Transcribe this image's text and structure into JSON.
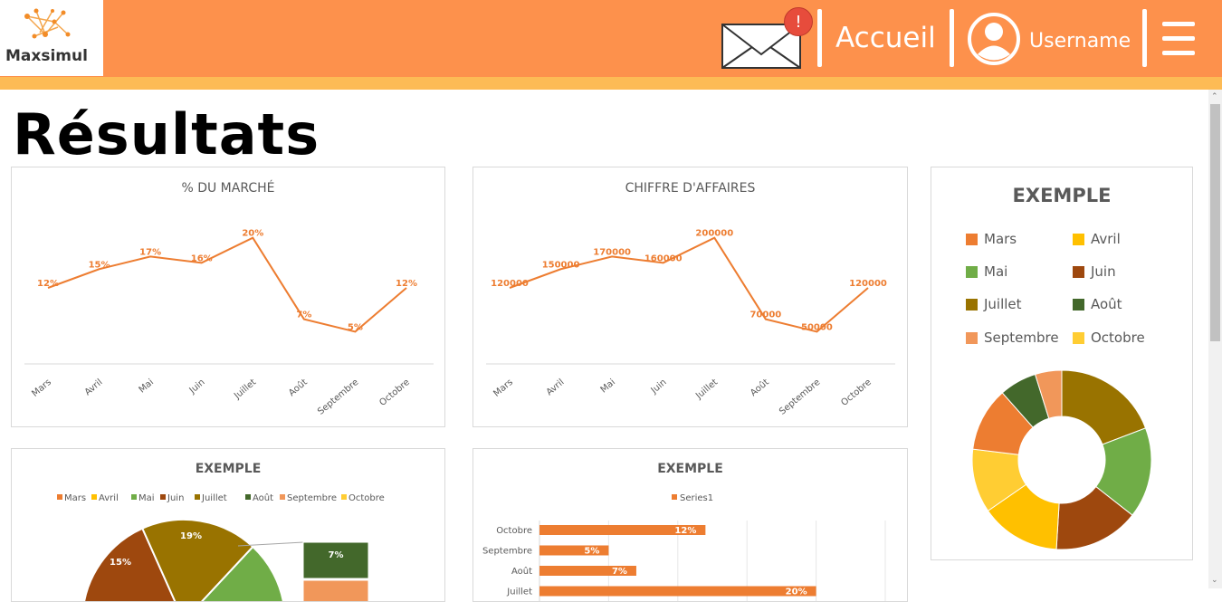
{
  "header": {
    "logo_text": "Maxsimul",
    "notification_badge": "!",
    "home_label": "Accueil",
    "username": "Username"
  },
  "page_title": "Résultats",
  "months": [
    "Mars",
    "Avril",
    "Mai",
    "Juin",
    "Juillet",
    "Août",
    "Septembre",
    "Octobre"
  ],
  "colors": {
    "Mars": "#ed7d31",
    "Avril": "#ffc000",
    "Mai": "#70ad47",
    "Juin": "#9e480e",
    "Juillet": "#997300",
    "Août": "#43682b",
    "Septembre": "#f1975a",
    "Octobre": "#ffcd33",
    "series": "#ed7d31"
  },
  "chart_data": [
    {
      "type": "line",
      "title": "% DU MARCHÉ",
      "categories": [
        "Mars",
        "Avril",
        "Mai",
        "Juin",
        "Juillet",
        "Août",
        "Septembre",
        "Octobre"
      ],
      "values": [
        12,
        15,
        17,
        16,
        20,
        7,
        5,
        12
      ],
      "data_labels": [
        "12%",
        "15%",
        "17%",
        "16%",
        "20%",
        "7%",
        "5%",
        "12%"
      ],
      "ylim": [
        0,
        24
      ]
    },
    {
      "type": "line",
      "title": "CHIFFRE D'AFFAIRES",
      "categories": [
        "Mars",
        "Avril",
        "Mai",
        "Juin",
        "Juillet",
        "Août",
        "Septembre",
        "Octobre"
      ],
      "values": [
        120000,
        150000,
        170000,
        160000,
        200000,
        70000,
        50000,
        120000
      ],
      "data_labels": [
        "120000",
        "150000",
        "170000",
        "160000",
        "200000",
        "70000",
        "50000",
        "120000"
      ],
      "ylim": [
        0,
        240000
      ]
    },
    {
      "type": "pie",
      "title": "EXEMPLE",
      "legend": [
        "Mars",
        "Avril",
        "Mai",
        "Juin",
        "Juillet",
        "Août",
        "Septembre",
        "Octobre"
      ],
      "legend_position": "top",
      "visible_labels": [
        {
          "label": "Juin",
          "value": "15%"
        },
        {
          "label": "Juillet",
          "value": "19%"
        },
        {
          "label": "Août",
          "value": "7%"
        }
      ]
    },
    {
      "type": "bar",
      "title": "EXEMPLE",
      "legend": [
        "Series1"
      ],
      "categories": [
        "Octobre",
        "Septembre",
        "Août",
        "Juillet"
      ],
      "values": [
        12,
        5,
        7,
        20
      ],
      "data_labels": [
        "12%",
        "5%",
        "7%",
        "20%"
      ],
      "xlim": [
        0,
        25
      ]
    },
    {
      "type": "pie",
      "title": "EXEMPLE",
      "legend": [
        "Mars",
        "Avril",
        "Mai",
        "Juin",
        "Juillet",
        "Août",
        "Septembre",
        "Octobre"
      ],
      "legend_position": "top",
      "values": [
        12,
        15,
        17,
        16,
        20,
        7,
        5,
        12
      ]
    }
  ]
}
